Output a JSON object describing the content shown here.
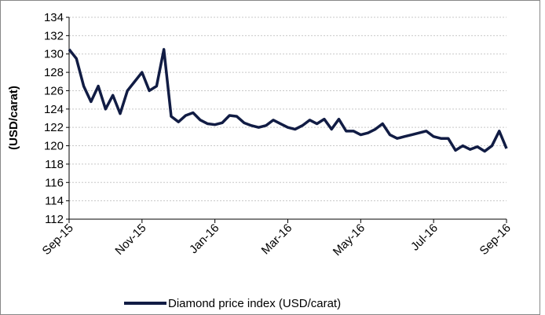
{
  "chart_data": {
    "type": "line",
    "y_axis_label": "(USD/carat)",
    "categories": [
      "Sep-15",
      null,
      null,
      null,
      null,
      null,
      null,
      null,
      null,
      null,
      "Nov-15",
      null,
      null,
      null,
      null,
      null,
      null,
      null,
      null,
      null,
      "Jan-16",
      null,
      null,
      null,
      null,
      null,
      null,
      null,
      null,
      null,
      "Mar-16",
      null,
      null,
      null,
      null,
      null,
      null,
      null,
      null,
      null,
      "May-16",
      null,
      null,
      null,
      null,
      null,
      null,
      null,
      null,
      null,
      "Jul-16",
      null,
      null,
      null,
      null,
      null,
      null,
      null,
      null,
      null,
      "Sep-16"
    ],
    "series": [
      {
        "name": "Diamond price index (USD/carat)",
        "color": "#111c44",
        "values": [
          130.5,
          129.5,
          126.5,
          124.8,
          126.5,
          124.0,
          125.5,
          123.5,
          126.0,
          127.0,
          128.0,
          126.0,
          126.5,
          130.5,
          123.2,
          122.6,
          123.3,
          123.6,
          122.8,
          122.4,
          122.3,
          122.5,
          123.3,
          123.2,
          122.5,
          122.2,
          122.0,
          122.2,
          122.8,
          122.4,
          122.0,
          121.8,
          122.2,
          122.8,
          122.4,
          122.9,
          121.8,
          122.9,
          121.6,
          121.6,
          121.2,
          121.4,
          121.8,
          122.4,
          121.2,
          120.8,
          121.0,
          121.2,
          121.4,
          121.6,
          121.0,
          120.8,
          120.8,
          119.5,
          120.0,
          119.6,
          119.9,
          119.4,
          120.0,
          121.6,
          119.7
        ]
      }
    ],
    "ylim": [
      112,
      134
    ],
    "yticks": [
      112,
      114,
      116,
      118,
      120,
      122,
      124,
      126,
      128,
      130,
      132,
      134
    ],
    "grid": true,
    "legend": "bottom"
  }
}
